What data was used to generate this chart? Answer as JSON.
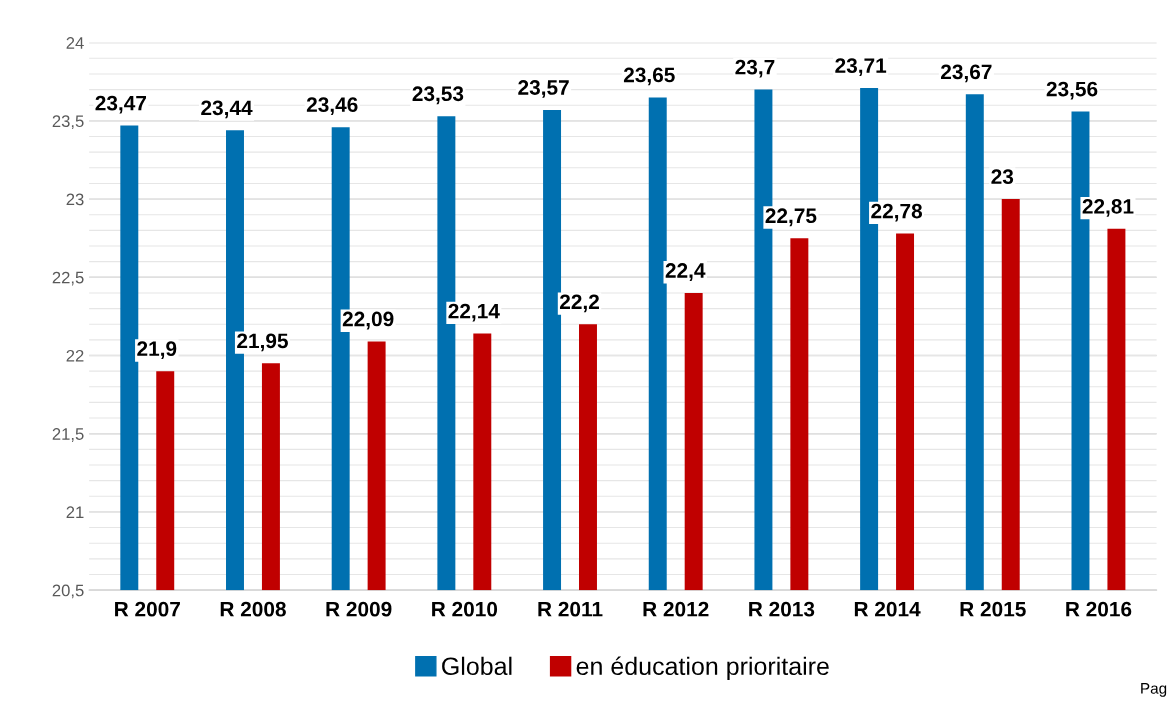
{
  "chart_data": {
    "type": "bar",
    "categories": [
      "R 2007",
      "R 2008",
      "R 2009",
      "R 2010",
      "R 2011",
      "R 2012",
      "R 2013",
      "R 2014",
      "R 2015",
      "R 2016"
    ],
    "series": [
      {
        "name": "Global",
        "color": "#0070b0",
        "values": [
          23.47,
          23.44,
          23.46,
          23.53,
          23.57,
          23.65,
          23.7,
          23.71,
          23.67,
          23.56
        ],
        "value_labels": [
          "23,47",
          "23,44",
          "23,46",
          "23,53",
          "23,57",
          "23,65",
          "23,7",
          "23,71",
          "23,67",
          "23,56"
        ]
      },
      {
        "name": "en éducation prioritaire",
        "color": "#c00000",
        "values": [
          21.9,
          21.95,
          22.09,
          22.14,
          22.2,
          22.4,
          22.75,
          22.78,
          23,
          22.81
        ],
        "value_labels": [
          "21,9",
          "21,95",
          "22,09",
          "22,14",
          "22,2",
          "22,4",
          "22,75",
          "22,78",
          "23",
          "22,81"
        ]
      }
    ],
    "ylim": [
      20.5,
      24
    ],
    "yticks": [
      {
        "value": 20.5,
        "label": "20,5"
      },
      {
        "value": 20.6,
        "label": null
      },
      {
        "value": 20.7,
        "label": null
      },
      {
        "value": 20.8,
        "label": null
      },
      {
        "value": 20.9,
        "label": null
      },
      {
        "value": 21,
        "label": "21"
      },
      {
        "value": 21.1,
        "label": null
      },
      {
        "value": 21.2,
        "label": null
      },
      {
        "value": 21.3,
        "label": null
      },
      {
        "value": 21.4,
        "label": null
      },
      {
        "value": 21.5,
        "label": "21,5"
      },
      {
        "value": 21.6,
        "label": null
      },
      {
        "value": 21.7,
        "label": null
      },
      {
        "value": 21.8,
        "label": null
      },
      {
        "value": 21.9,
        "label": null
      },
      {
        "value": 22,
        "label": "22"
      },
      {
        "value": 22.1,
        "label": null
      },
      {
        "value": 22.2,
        "label": null
      },
      {
        "value": 22.3,
        "label": null
      },
      {
        "value": 22.4,
        "label": null
      },
      {
        "value": 22.5,
        "label": "22,5"
      },
      {
        "value": 22.6,
        "label": null
      },
      {
        "value": 22.7,
        "label": null
      },
      {
        "value": 22.8,
        "label": null
      },
      {
        "value": 22.9,
        "label": null
      },
      {
        "value": 23,
        "label": "23"
      },
      {
        "value": 23.1,
        "label": null
      },
      {
        "value": 23.2,
        "label": null
      },
      {
        "value": 23.3,
        "label": null
      },
      {
        "value": 23.4,
        "label": null
      },
      {
        "value": 23.5,
        "label": "23,5"
      },
      {
        "value": 23.6,
        "label": null
      },
      {
        "value": 23.7,
        "label": null
      },
      {
        "value": 23.8,
        "label": null
      },
      {
        "value": 23.9,
        "label": null
      },
      {
        "value": 24,
        "label": "24"
      }
    ],
    "grid": "y",
    "legend": "bottom",
    "annotations": [
      "Pag"
    ]
  }
}
